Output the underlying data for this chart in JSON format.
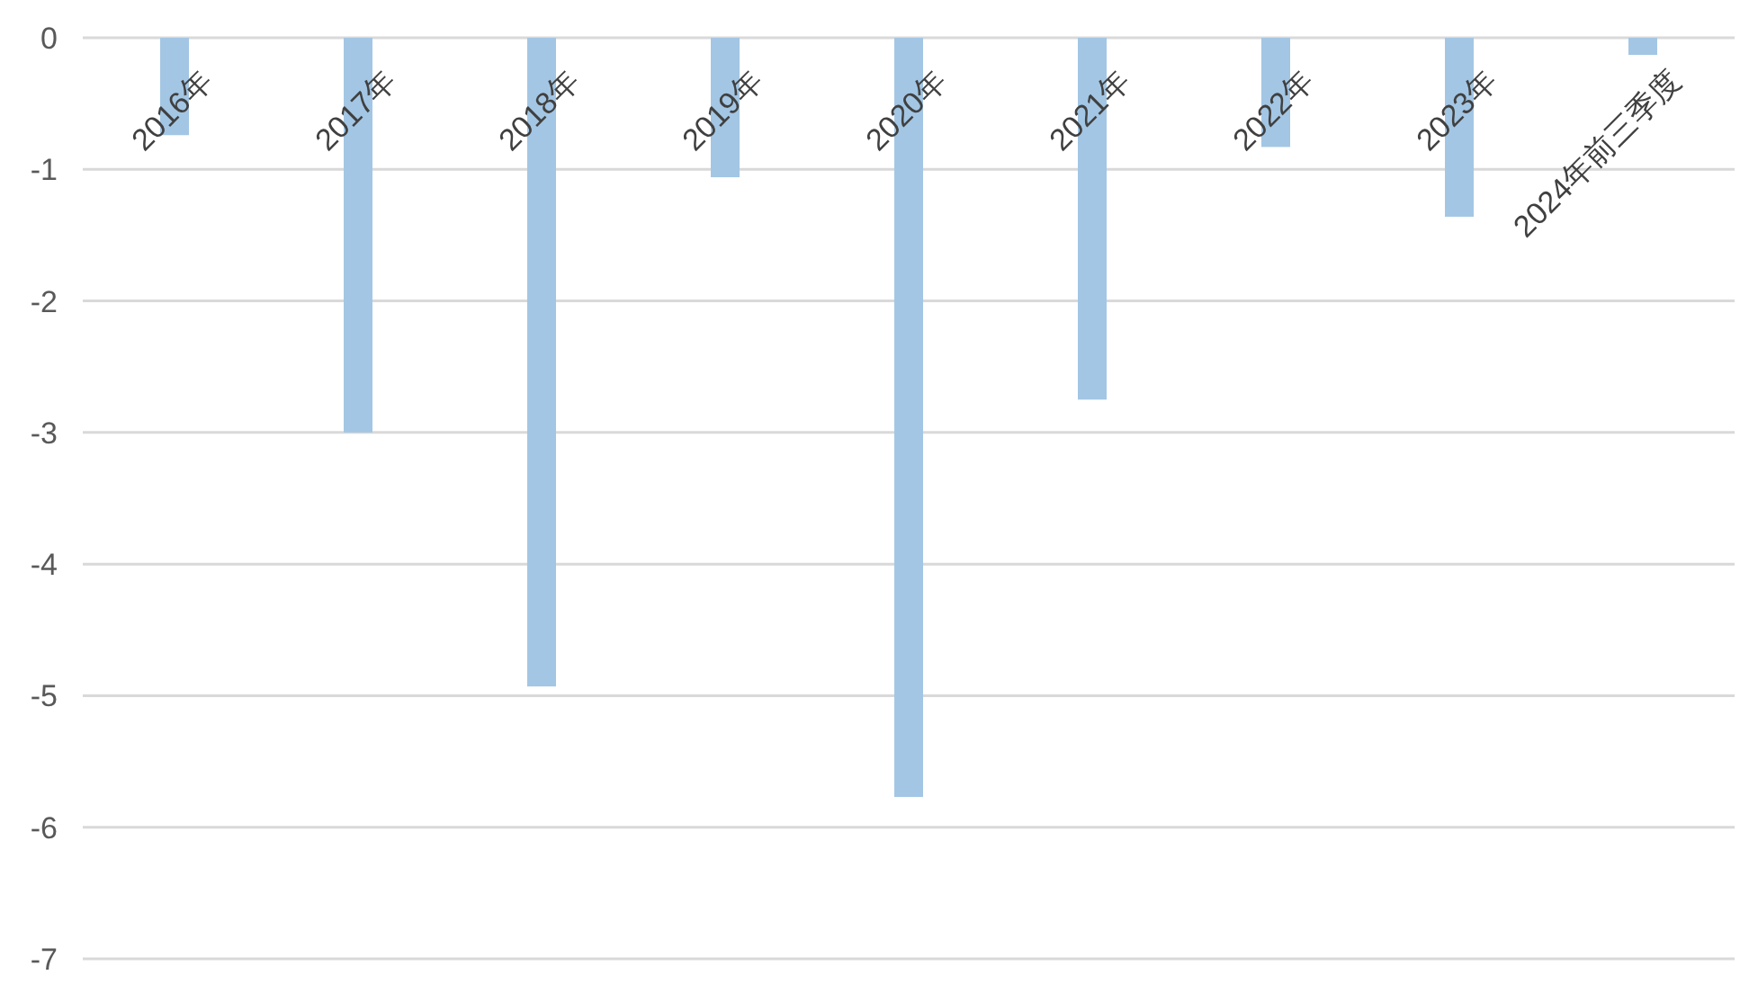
{
  "chart_data": {
    "type": "bar",
    "categories": [
      "2016年",
      "2017年",
      "2018年",
      "2019年",
      "2020年",
      "2021年",
      "2022年",
      "2023年",
      "2024年前三季度"
    ],
    "values": [
      -0.74,
      -3.0,
      -4.93,
      -1.06,
      -5.77,
      -2.75,
      -0.83,
      -1.36,
      -0.13
    ],
    "color": "#a3c6e4",
    "ylim": [
      -7,
      0
    ],
    "yticks": [
      0,
      -1,
      -2,
      -3,
      -4,
      -5,
      -6,
      -7
    ],
    "grid": "y"
  }
}
